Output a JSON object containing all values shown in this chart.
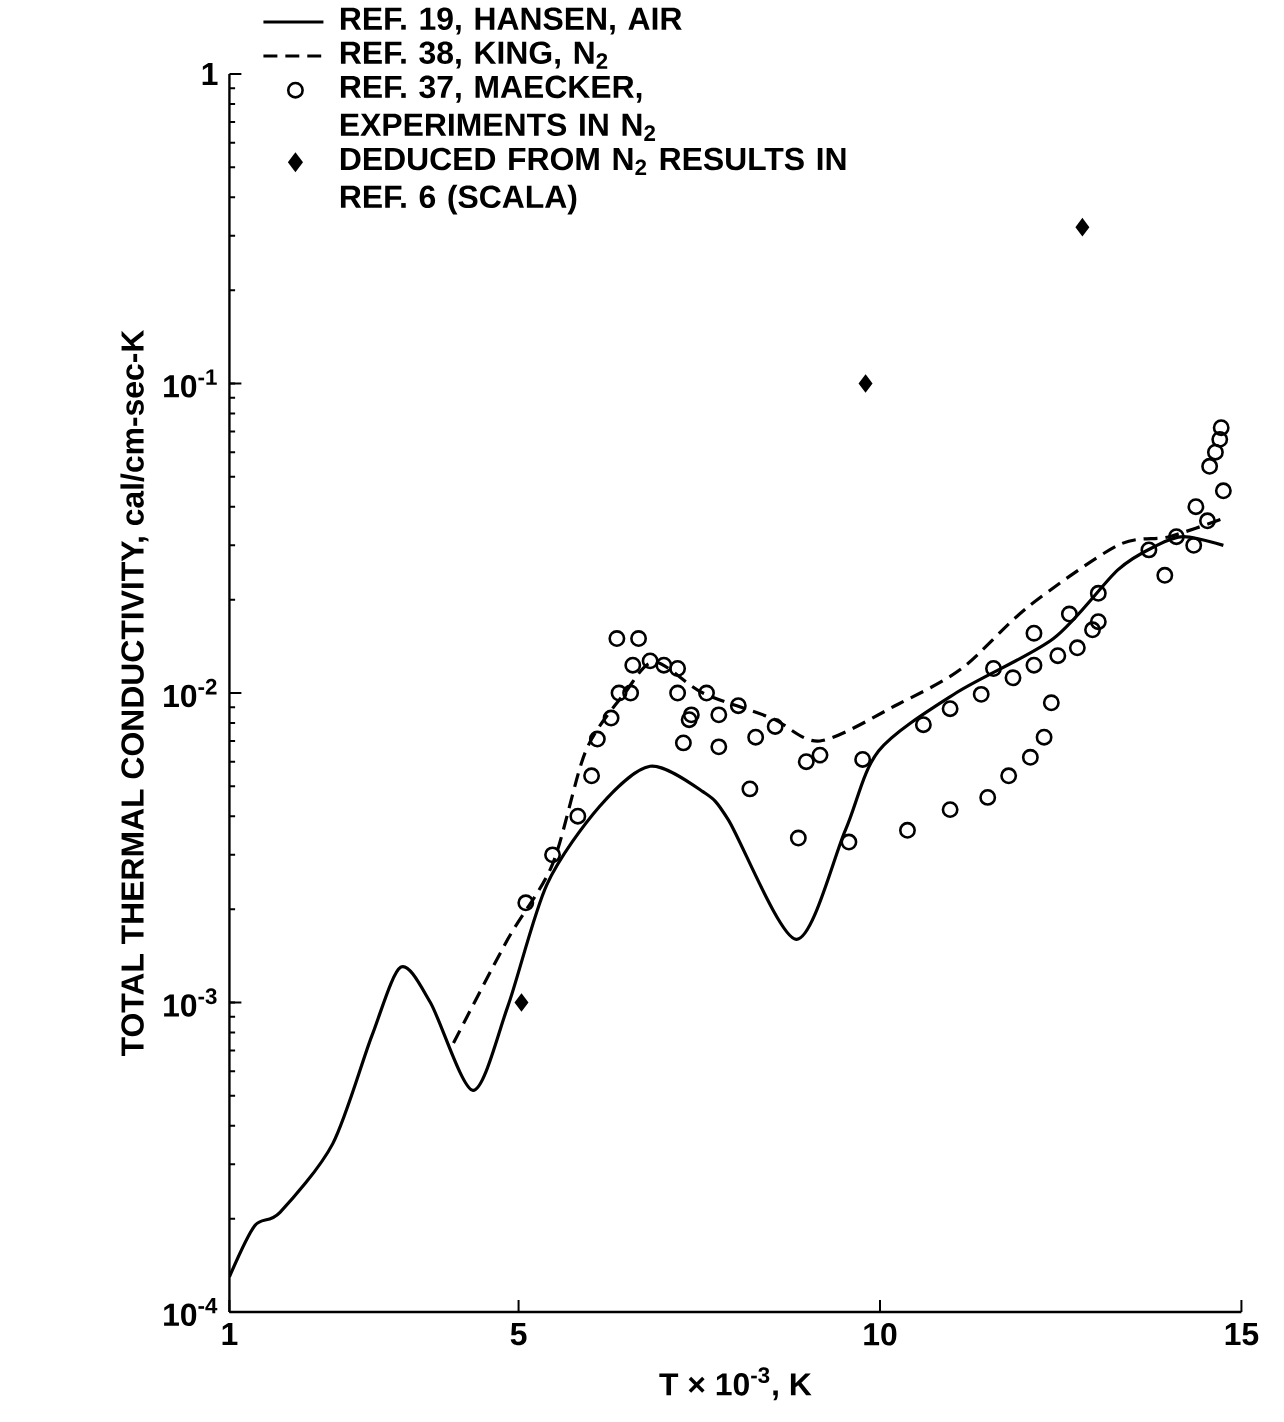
{
  "chart_data": {
    "type": "line",
    "xlabel": "T × 10$^{-3}$, K",
    "ylabel": "TOTAL THERMAL CONDUCTIVITY, cal/cm-sec-K",
    "xlim": [
      1,
      15
    ],
    "xticks": [
      1,
      5,
      10,
      15
    ],
    "ylim": [
      0.0001,
      1
    ],
    "log": "y",
    "yticks": [
      {
        "value": 0.0001,
        "label": "10$^{-4}$"
      },
      {
        "value": 0.001,
        "label": "10$^{-3}$"
      },
      {
        "value": 0.01,
        "label": "10$^{-2}$"
      },
      {
        "value": 0.1,
        "label": "10$^{-1}$"
      },
      1
    ],
    "grid": false,
    "legend": "top left",
    "series": [
      {
        "name": "REF. 19, HANSEN, AIR",
        "type": "line",
        "line_style": "solid",
        "marker": "none",
        "color": "#000000",
        "x": [
          1.0,
          1.35,
          1.7,
          2.43,
          2.97,
          3.37,
          3.78,
          4.37,
          4.85,
          5.39,
          6.12,
          6.82,
          7.55,
          7.9,
          8.84,
          9.52,
          9.98,
          11.05,
          12.4,
          13.29,
          13.83,
          14.2,
          14.75
        ],
        "values": [
          0.00013,
          0.00019,
          0.00021,
          0.00035,
          0.00078,
          0.0013,
          0.001,
          0.00052,
          0.00097,
          0.0024,
          0.0043,
          0.0058,
          0.0048,
          0.0039,
          0.0016,
          0.0036,
          0.0065,
          0.01,
          0.015,
          0.025,
          0.03,
          0.032,
          0.03
        ]
      },
      {
        "name": "REF. 38, KING, N$_{2}$",
        "type": "line",
        "line_style": "dashed",
        "marker": "none",
        "color": "#000000",
        "x": [
          4.1,
          4.85,
          5.47,
          5.93,
          6.47,
          6.88,
          7.55,
          8.5,
          9.17,
          10.25,
          11.13,
          12.05,
          13.29,
          14.0,
          14.8
        ],
        "values": [
          0.00074,
          0.0016,
          0.0028,
          0.0065,
          0.01,
          0.0126,
          0.01,
          0.0083,
          0.007,
          0.0092,
          0.012,
          0.019,
          0.03,
          0.032,
          0.037
        ]
      },
      {
        "name": "REF. 37, MAECKER, EXPERIMENTS IN N$_{2}$",
        "type": "scatter",
        "marker": "circle",
        "color": "#000000",
        "x": [
          5.1,
          5.47,
          5.82,
          6.01,
          6.09,
          6.28,
          6.39,
          6.55,
          6.58,
          6.36,
          6.66,
          6.82,
          7.2,
          7.2,
          7.36,
          7.28,
          7.01,
          7.6,
          7.39,
          7.77,
          8.04,
          7.77,
          8.28,
          8.55,
          8.2,
          8.98,
          9.17,
          8.87,
          9.57,
          9.76,
          10.38,
          10.6,
          10.97,
          10.97,
          11.4,
          11.49,
          11.57,
          11.84,
          11.78,
          12.13,
          12.13,
          12.08,
          12.46,
          12.27,
          12.37,
          12.62,
          12.73,
          12.94,
          13.02,
          13.02,
          13.72,
          13.94,
          14.1,
          14.34,
          14.53,
          14.37,
          14.75,
          14.56,
          14.64,
          14.7,
          14.72
        ],
        "values": [
          0.0021,
          0.003,
          0.004,
          0.0054,
          0.0071,
          0.0083,
          0.01,
          0.01,
          0.0123,
          0.015,
          0.015,
          0.0127,
          0.012,
          0.01,
          0.0082,
          0.0069,
          0.0123,
          0.01,
          0.0085,
          0.0085,
          0.0091,
          0.0067,
          0.0072,
          0.0078,
          0.0049,
          0.006,
          0.0063,
          0.0034,
          0.0033,
          0.0061,
          0.0036,
          0.0079,
          0.0042,
          0.0089,
          0.0099,
          0.0046,
          0.012,
          0.0112,
          0.0054,
          0.0123,
          0.0156,
          0.0062,
          0.0132,
          0.0072,
          0.0093,
          0.018,
          0.014,
          0.016,
          0.017,
          0.021,
          0.029,
          0.024,
          0.032,
          0.03,
          0.036,
          0.04,
          0.045,
          0.054,
          0.06,
          0.066,
          0.072
        ]
      },
      {
        "name": "DEDUCED FROM N$_{2}$ RESULTS IN REF. 6 (SCALA)",
        "type": "scatter",
        "marker": "diamond",
        "color": "#000000",
        "x": [
          5.04,
          9.8,
          12.8
        ],
        "values": [
          0.001,
          0.1,
          0.32
        ]
      }
    ]
  }
}
